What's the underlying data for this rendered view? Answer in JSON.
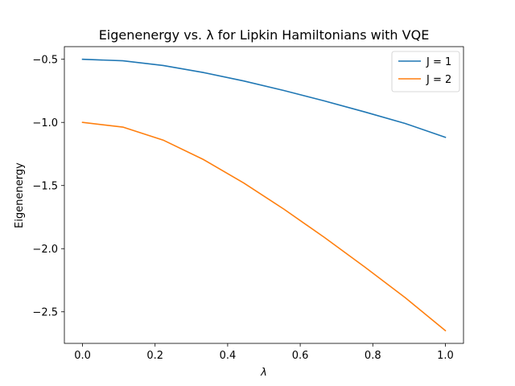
{
  "chart_data": {
    "type": "line",
    "title": "Eigenenergy vs. λ for Lipkin Hamiltonians with VQE",
    "xlabel": "λ",
    "ylabel": "Eigenenergy",
    "xlim": [
      -0.05,
      1.05
    ],
    "ylim": [
      -2.75,
      -0.4
    ],
    "x": [
      0.0,
      0.1111,
      0.2222,
      0.3333,
      0.4444,
      0.5556,
      0.6667,
      0.7778,
      0.8889,
      1.0
    ],
    "xticks": [
      0.0,
      0.2,
      0.4,
      0.6,
      0.8,
      1.0
    ],
    "xtick_labels": [
      "0.0",
      "0.2",
      "0.4",
      "0.6",
      "0.8",
      "1.0"
    ],
    "yticks": [
      -0.5,
      -1.0,
      -1.5,
      -2.0,
      -2.5
    ],
    "ytick_labels": [
      "−0.5",
      "−1.0",
      "−1.5",
      "−2.0",
      "−2.5"
    ],
    "grid": false,
    "legend_position": "top-right",
    "series": [
      {
        "name": "J = 1",
        "color": "#1f77b4",
        "values": [
          -0.5,
          -0.512,
          -0.549,
          -0.605,
          -0.672,
          -0.748,
          -0.83,
          -0.917,
          -1.008,
          -1.118
        ]
      },
      {
        "name": "J = 2",
        "color": "#ff7f0e",
        "values": [
          -1.0,
          -1.037,
          -1.14,
          -1.294,
          -1.48,
          -1.688,
          -1.911,
          -2.145,
          -2.387,
          -2.649
        ]
      }
    ]
  }
}
